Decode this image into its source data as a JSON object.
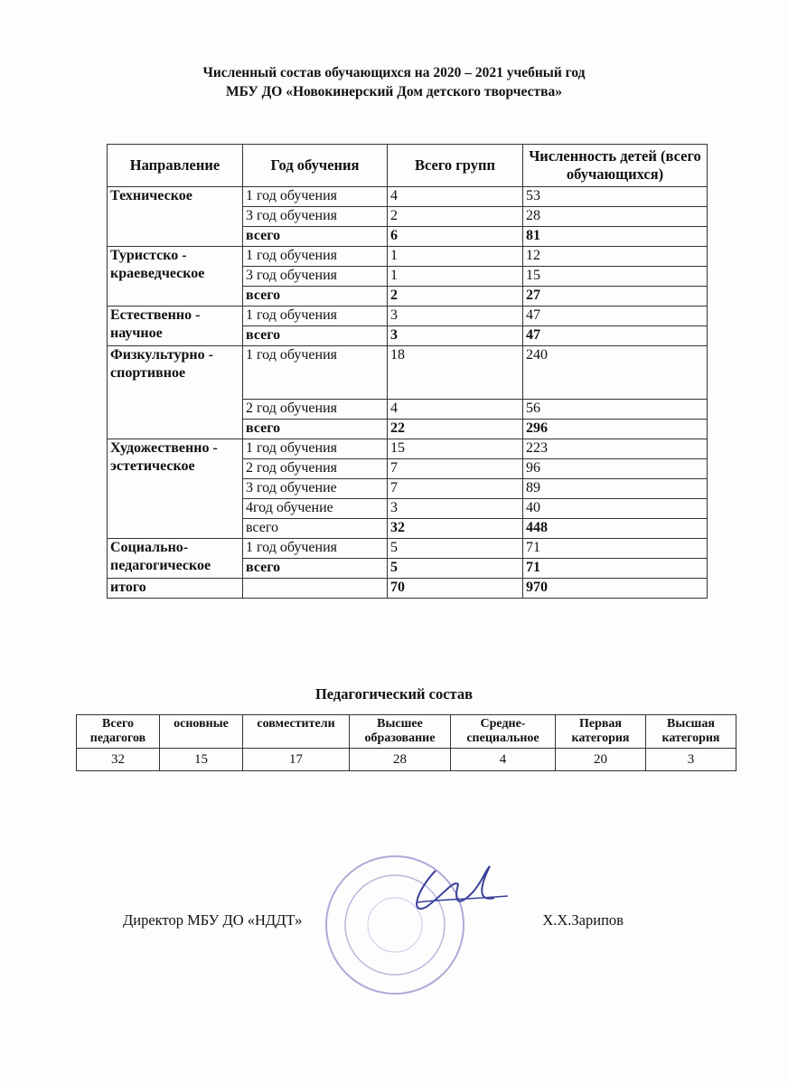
{
  "title": {
    "line1": "Численный состав обучающихся на 2020 – 2021 учебный год",
    "line2": "МБУ ДО «Новокинерский Дом детского творчества»"
  },
  "main_table": {
    "headers": [
      "Направление",
      "Год обучения",
      "Всего групп",
      "Численность детей (всего обучающихся)"
    ],
    "groups": [
      {
        "direction": "Техническое",
        "rows": [
          [
            "1 год обучения",
            "4",
            "53"
          ],
          [
            "3 год обучения",
            "2",
            "28"
          ],
          [
            "всего",
            "6",
            "81"
          ]
        ]
      },
      {
        "direction": "Туристско - краеведческое",
        "rows": [
          [
            "1 год обучения",
            "1",
            "12"
          ],
          [
            "3 год обучения",
            "1",
            "15"
          ],
          [
            "всего",
            "2",
            "27"
          ]
        ]
      },
      {
        "direction": "Естественно - научное",
        "rows": [
          [
            "1 год обучения",
            "3",
            "47"
          ],
          [
            "всего",
            "3",
            "47"
          ]
        ]
      },
      {
        "direction": "Физкультурно - спортивное",
        "rows": [
          [
            "1 год обучения",
            "18",
            "240"
          ],
          [
            "2 год обучения",
            "4",
            "56"
          ],
          [
            "всего",
            "22",
            "296"
          ]
        ]
      },
      {
        "direction": "Художественно - эстетическое",
        "rows": [
          [
            "1 год обучения",
            "15",
            "223"
          ],
          [
            "2 год обучения",
            "7",
            "96"
          ],
          [
            "3 год обучение",
            "7",
            "89"
          ],
          [
            "4год обучение",
            "3",
            "40"
          ],
          [
            "всего",
            "32",
            "448"
          ]
        ]
      },
      {
        "direction": "Социально-педагогическое",
        "rows": [
          [
            "1 год обучения",
            "5",
            "71"
          ],
          [
            "всего",
            "5",
            "71"
          ]
        ]
      }
    ],
    "total": {
      "label": "итого",
      "groups": "70",
      "children": "970"
    }
  },
  "staff": {
    "title": "Педагогический состав",
    "headers": [
      "Всего педагогов",
      "основные",
      "совместители",
      "Высшее образование",
      "Средне-специальное",
      "Первая категория",
      "Высшая категория"
    ],
    "values": [
      "32",
      "15",
      "17",
      "28",
      "4",
      "20",
      "3"
    ]
  },
  "signature": {
    "position": "Директор МБУ ДО «НДДТ»",
    "name": "Х.Х.Зарипов"
  }
}
